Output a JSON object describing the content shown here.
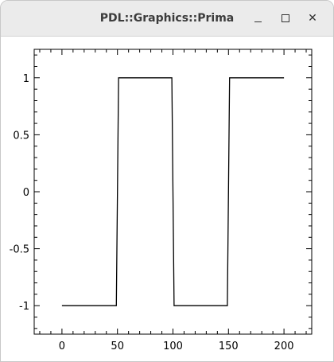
{
  "window": {
    "title": "PDL::Graphics::Prima",
    "minimize_icon": "minimize-icon",
    "maximize_icon": "maximize-icon",
    "close_icon": "close-icon",
    "close_glyph": "✕"
  },
  "chart_data": {
    "type": "line",
    "title": "",
    "xlabel": "",
    "ylabel": "",
    "xlim": [
      -25,
      225
    ],
    "ylim": [
      -1.25,
      1.25
    ],
    "x_ticks": [
      0,
      50,
      100,
      150,
      200
    ],
    "x_tick_labels": [
      "0",
      "50",
      "100",
      "150",
      "200"
    ],
    "y_ticks": [
      1,
      0.5,
      0,
      -0.5,
      -1
    ],
    "y_tick_labels": [
      "1",
      "0.5",
      "0",
      "-0.5",
      "-1"
    ],
    "grid": false,
    "legend": "none",
    "series": [
      {
        "color": "#000000",
        "x": [
          0,
          49,
          50,
          51,
          99,
          100,
          101,
          149,
          150,
          151,
          200
        ],
        "y": [
          -1,
          -1,
          0,
          1,
          1,
          0,
          -1,
          -1,
          0,
          1,
          1
        ]
      }
    ]
  }
}
